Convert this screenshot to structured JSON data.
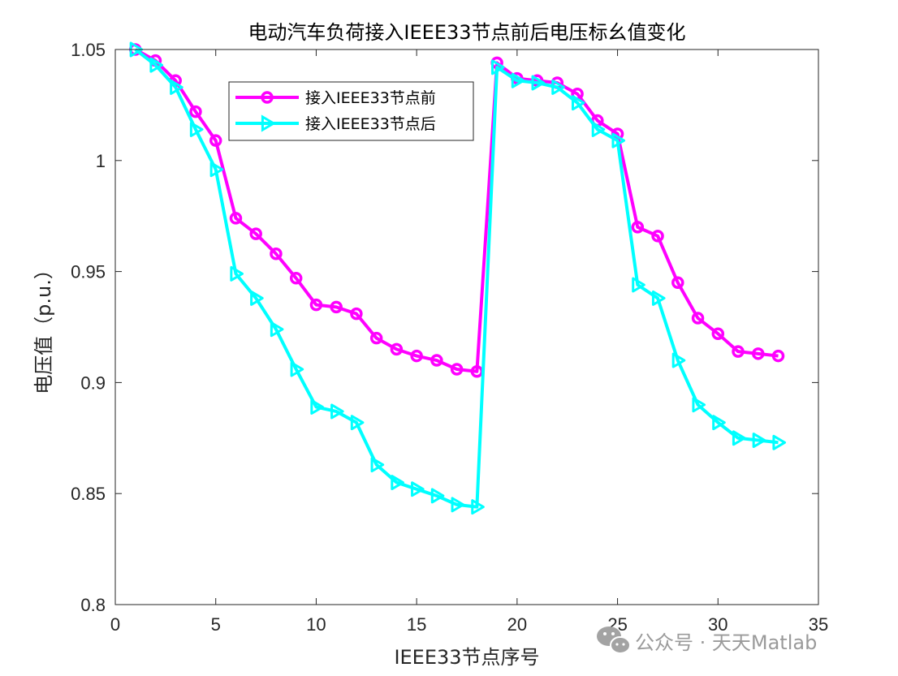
{
  "chart_data": {
    "type": "line",
    "title": "电动汽车负荷接入IEEE33节点前后电压标幺值变化",
    "xlabel": "IEEE33节点序号",
    "ylabel": "电压值（p.u.）",
    "xlim": [
      0,
      35
    ],
    "ylim": [
      0.8,
      1.05
    ],
    "x_ticks": [
      0,
      5,
      10,
      15,
      20,
      25,
      30,
      35
    ],
    "x_tick_labels": [
      "0",
      "5",
      "10",
      "15",
      "20",
      "25",
      "30",
      "35"
    ],
    "y_ticks": [
      0.8,
      0.85,
      0.9,
      0.95,
      1.0,
      1.05
    ],
    "y_tick_labels": [
      "0.8",
      "0.85",
      "0.9",
      "0.95",
      "1",
      "1.05"
    ],
    "grid": false,
    "legend_position": "top-left",
    "x": [
      1,
      2,
      3,
      4,
      5,
      6,
      7,
      8,
      9,
      10,
      11,
      12,
      13,
      14,
      15,
      16,
      17,
      18,
      19,
      20,
      21,
      22,
      23,
      24,
      25,
      26,
      27,
      28,
      29,
      30,
      31,
      32,
      33
    ],
    "series": [
      {
        "name": "接入IEEE33节点前",
        "color": "#ff00ff",
        "marker": "circle",
        "values": [
          1.05,
          1.045,
          1.036,
          1.022,
          1.009,
          0.974,
          0.967,
          0.958,
          0.947,
          0.935,
          0.934,
          0.931,
          0.92,
          0.915,
          0.912,
          0.91,
          0.906,
          0.905,
          1.044,
          1.037,
          1.036,
          1.035,
          1.03,
          1.018,
          1.012,
          0.97,
          0.966,
          0.945,
          0.929,
          0.922,
          0.914,
          0.913,
          0.912
        ]
      },
      {
        "name": "接入IEEE33节点后",
        "color": "#00ffff",
        "marker": "triangle-right",
        "values": [
          1.05,
          1.043,
          1.033,
          1.014,
          0.996,
          0.949,
          0.938,
          0.924,
          0.906,
          0.889,
          0.887,
          0.882,
          0.863,
          0.855,
          0.852,
          0.849,
          0.845,
          0.844,
          1.042,
          1.036,
          1.035,
          1.033,
          1.026,
          1.014,
          1.009,
          0.944,
          0.938,
          0.91,
          0.89,
          0.882,
          0.875,
          0.874,
          0.873
        ]
      }
    ]
  },
  "watermark": {
    "text": "公众号 · 天天Matlab",
    "icon": "wechat-icon"
  }
}
